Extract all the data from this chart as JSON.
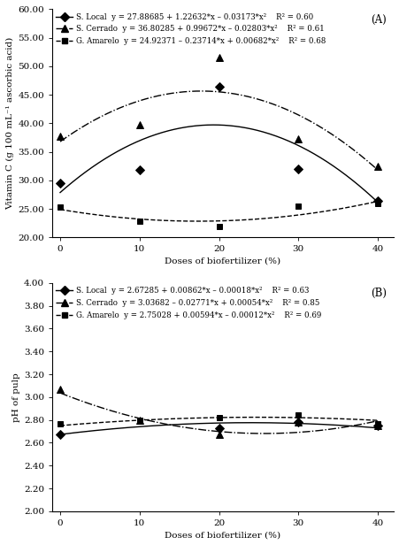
{
  "panel_A": {
    "title_label": "(A)",
    "ylabel": "Vitamin C (g 100 mL⁻¹ ascorbic acid)",
    "xlabel": "Doses of biofertilizer (%)",
    "ylim": [
      20.0,
      60.0
    ],
    "yticks": [
      20.0,
      25.0,
      30.0,
      35.0,
      40.0,
      45.0,
      50.0,
      55.0,
      60.0
    ],
    "xlim": [
      -1,
      42
    ],
    "xticks": [
      0,
      10,
      20,
      30,
      40
    ],
    "series": [
      {
        "name": "S. Local",
        "eq": "y = 27.88685 + 1.22632*x – 0.03173*x²",
        "r2": "R² = 0.60",
        "coeffs": [
          27.88685,
          1.22632,
          -0.03173
        ],
        "points_x": [
          0,
          10,
          20,
          30,
          40
        ],
        "points_y": [
          29.5,
          31.8,
          46.5,
          32.0,
          26.5
        ],
        "marker": "D",
        "linestyle": "-",
        "color": "black",
        "markersize": 5,
        "linewidth": 1.0
      },
      {
        "name": "S. Cerrado",
        "eq": "y = 36.80285 + 0.99672*x – 0.02803*x²",
        "r2": "R² = 0.61",
        "coeffs": [
          36.80285,
          0.99672,
          -0.02803
        ],
        "points_x": [
          0,
          10,
          20,
          30,
          40
        ],
        "points_y": [
          37.8,
          39.7,
          51.5,
          37.3,
          32.5
        ],
        "marker": "^",
        "linestyle": "-.",
        "color": "black",
        "markersize": 6,
        "linewidth": 1.0
      },
      {
        "name": "G. Amarelo",
        "eq": "y = 24.92371 – 0.23714*x + 0.00682*x²",
        "r2": "R² = 0.68",
        "coeffs": [
          24.92371,
          -0.23714,
          0.00682
        ],
        "points_x": [
          0,
          10,
          20,
          30,
          40
        ],
        "points_y": [
          25.3,
          22.8,
          22.0,
          25.5,
          26.0
        ],
        "marker": "s",
        "linestyle": "--",
        "color": "black",
        "markersize": 5,
        "linewidth": 1.0
      }
    ]
  },
  "panel_B": {
    "title_label": "(B)",
    "ylabel": "pH of pulp",
    "xlabel": "Doses of biofertilizer (%)",
    "ylim": [
      2.0,
      4.0
    ],
    "yticks": [
      2.0,
      2.2,
      2.4,
      2.6,
      2.8,
      3.0,
      3.2,
      3.4,
      3.6,
      3.8,
      4.0
    ],
    "xlim": [
      -1,
      42
    ],
    "xticks": [
      0,
      10,
      20,
      30,
      40
    ],
    "series": [
      {
        "name": "S. Local",
        "eq": "y = 2.67285 + 0.00862*x – 0.00018*x²",
        "r2": "R² = 0.63",
        "coeffs": [
          2.67285,
          0.00862,
          -0.00018
        ],
        "points_x": [
          0,
          20,
          30,
          40
        ],
        "points_y": [
          2.67,
          2.73,
          2.78,
          2.75
        ],
        "marker": "D",
        "linestyle": "-",
        "color": "black",
        "markersize": 5,
        "linewidth": 1.0
      },
      {
        "name": "S. Cerrado",
        "eq": "y = 3.03682 – 0.02771*x + 0.00054*x²",
        "r2": "R² = 0.85",
        "coeffs": [
          3.03682,
          -0.02771,
          0.00054
        ],
        "points_x": [
          0,
          10,
          20,
          30,
          40
        ],
        "points_y": [
          3.07,
          2.8,
          2.67,
          2.78,
          2.75
        ],
        "marker": "^",
        "linestyle": "-.",
        "color": "black",
        "markersize": 6,
        "linewidth": 1.0
      },
      {
        "name": "G. Amarelo",
        "eq": "y = 2.75028 + 0.00594*x – 0.00012*x²",
        "r2": "R² = 0.69",
        "coeffs": [
          2.75028,
          0.00594,
          -0.00012
        ],
        "points_x": [
          0,
          10,
          20,
          30,
          40
        ],
        "points_y": [
          2.77,
          2.8,
          2.82,
          2.84,
          2.77
        ],
        "marker": "s",
        "linestyle": "--",
        "color": "black",
        "markersize": 5,
        "linewidth": 1.0
      }
    ]
  },
  "background_color": "white",
  "font_family": "DejaVu Serif"
}
